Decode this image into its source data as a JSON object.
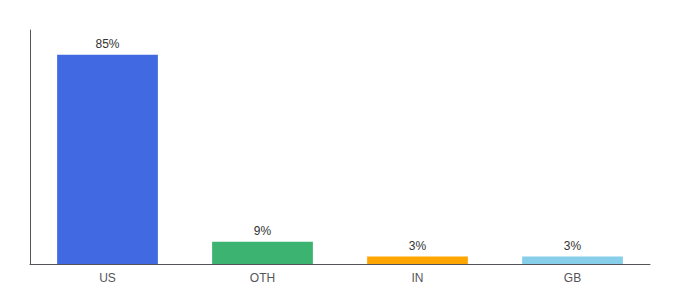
{
  "chart_data": {
    "type": "bar",
    "categories": [
      "US",
      "OTH",
      "IN",
      "GB"
    ],
    "values": [
      85,
      9,
      3,
      3
    ],
    "value_labels": [
      "85%",
      "9%",
      "3%",
      "3%"
    ],
    "colors": [
      "#4169E1",
      "#3CB371",
      "#FFA500",
      "#87CEEB"
    ],
    "ylim": [
      0,
      95
    ],
    "grid": false,
    "tick_labels": "x"
  }
}
